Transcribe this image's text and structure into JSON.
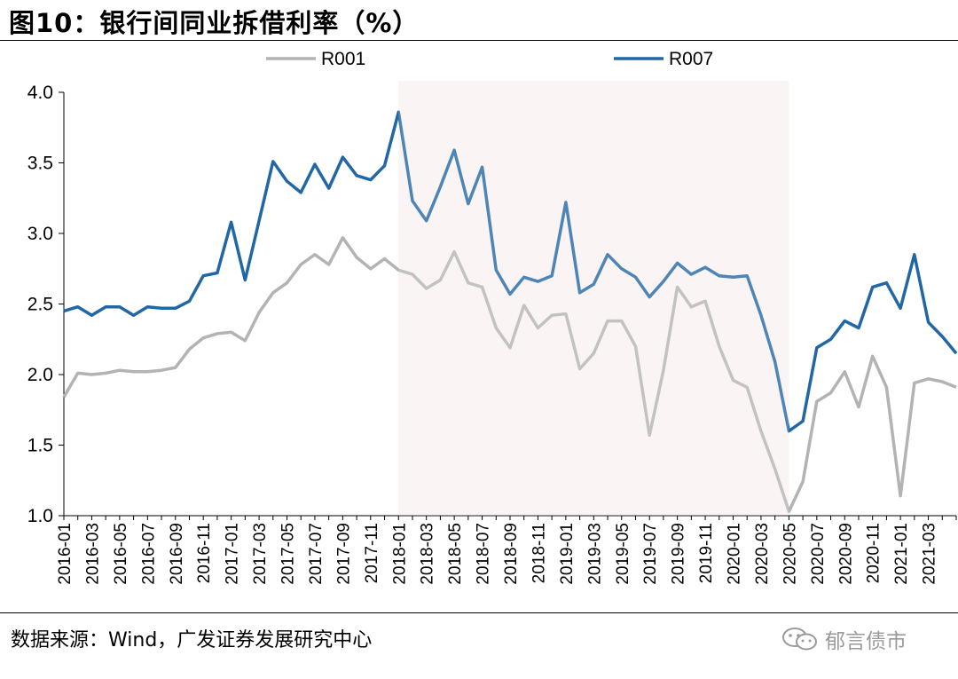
{
  "title": "图10：银行间同业拆借利率（%）",
  "source": "数据来源：Wind，广发证券发展研究中心",
  "watermark": "郁言债市",
  "colors": {
    "r001": "#b3b3b3",
    "r007": "#2167a6",
    "shade": "#fbf2f2"
  },
  "chart_data": {
    "type": "line",
    "title": "银行间同业拆借利率（%）",
    "x": [
      "2016-01",
      "2016-02",
      "2016-03",
      "2016-04",
      "2016-05",
      "2016-06",
      "2016-07",
      "2016-08",
      "2016-09",
      "2016-10",
      "2016-11",
      "2016-12",
      "2017-01",
      "2017-02",
      "2017-03",
      "2017-04",
      "2017-05",
      "2017-06",
      "2017-07",
      "2017-08",
      "2017-09",
      "2017-10",
      "2017-11",
      "2017-12",
      "2018-01",
      "2018-02",
      "2018-03",
      "2018-04",
      "2018-05",
      "2018-06",
      "2018-07",
      "2018-08",
      "2018-09",
      "2018-10",
      "2018-11",
      "2018-12",
      "2019-01",
      "2019-02",
      "2019-03",
      "2019-04",
      "2019-05",
      "2019-06",
      "2019-07",
      "2019-08",
      "2019-09",
      "2019-10",
      "2019-11",
      "2019-12",
      "2020-01",
      "2020-02",
      "2020-03",
      "2020-04",
      "2020-05",
      "2020-06",
      "2020-07",
      "2020-08",
      "2020-09",
      "2020-10",
      "2020-11",
      "2020-12",
      "2021-01",
      "2021-02",
      "2021-03",
      "2021-04",
      "2021-05"
    ],
    "tick_labels": [
      "2016-01",
      "2016-03",
      "2016-05",
      "2016-07",
      "2016-09",
      "2016-11",
      "2017-01",
      "2017-03",
      "2017-05",
      "2017-07",
      "2017-09",
      "2017-11",
      "2018-01",
      "2018-03",
      "2018-05",
      "2018-07",
      "2018-09",
      "2018-11",
      "2019-01",
      "2019-03",
      "2019-05",
      "2019-07",
      "2019-09",
      "2019-11",
      "2020-01",
      "2020-03",
      "2020-05",
      "2020-07",
      "2020-09",
      "2020-11",
      "2021-01",
      "2021-03"
    ],
    "series": [
      {
        "name": "R001",
        "values": [
          1.84,
          2.01,
          2.0,
          2.01,
          2.03,
          2.02,
          2.02,
          2.03,
          2.05,
          2.18,
          2.26,
          2.29,
          2.3,
          2.24,
          2.44,
          2.58,
          2.65,
          2.78,
          2.85,
          2.78,
          2.97,
          2.83,
          2.75,
          2.82,
          2.74,
          2.71,
          2.61,
          2.67,
          2.87,
          2.65,
          2.62,
          2.33,
          2.19,
          2.49,
          2.33,
          2.42,
          2.43,
          2.04,
          2.15,
          2.38,
          2.38,
          2.2,
          1.57,
          2.03,
          2.62,
          2.48,
          2.52,
          2.2,
          1.96,
          1.91,
          1.6,
          1.33,
          1.03,
          1.24,
          1.81,
          1.87,
          2.02,
          1.77,
          2.13,
          1.91,
          1.14,
          1.94,
          1.97,
          1.95,
          1.91
        ]
      },
      {
        "name": "R007",
        "values": [
          2.45,
          2.48,
          2.42,
          2.48,
          2.48,
          2.42,
          2.48,
          2.47,
          2.47,
          2.52,
          2.7,
          2.72,
          3.08,
          2.67,
          3.09,
          3.51,
          3.37,
          3.29,
          3.49,
          3.32,
          3.54,
          3.41,
          3.38,
          3.48,
          3.86,
          3.23,
          3.09,
          3.33,
          3.59,
          3.21,
          3.47,
          2.74,
          2.57,
          2.69,
          2.66,
          2.7,
          3.22,
          2.58,
          2.64,
          2.85,
          2.75,
          2.69,
          2.55,
          2.66,
          2.79,
          2.71,
          2.76,
          2.7,
          2.69,
          2.7,
          2.42,
          2.09,
          1.6,
          1.67,
          2.19,
          2.25,
          2.38,
          2.33,
          2.62,
          2.65,
          2.47,
          2.85,
          2.37,
          2.27,
          2.15
        ]
      }
    ],
    "shaded_range": [
      "2018-01",
      "2020-05"
    ],
    "ylim": [
      1.0,
      4.0
    ],
    "yticks": [
      "1.0",
      "1.5",
      "2.0",
      "2.5",
      "3.0",
      "3.5",
      "4.0"
    ],
    "legend": "top",
    "grid": false
  }
}
